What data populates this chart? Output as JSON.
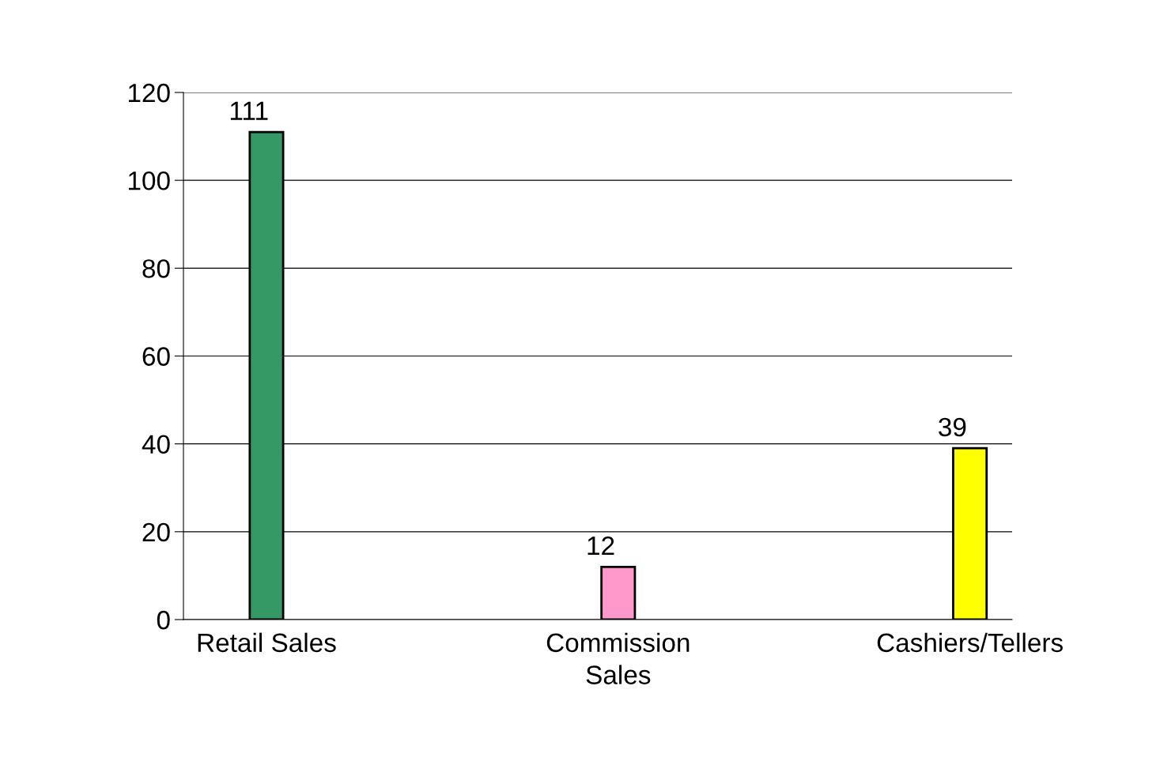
{
  "chart_data": {
    "type": "bar",
    "categories": [
      "Retail Sales",
      "Commission\nSales",
      "Cashiers/Tellers"
    ],
    "values": [
      111,
      12,
      39
    ],
    "colors": [
      "#359966",
      "#ff99cc",
      "#ffff00"
    ],
    "ylim": [
      0,
      120
    ],
    "yticks": [
      0,
      20,
      40,
      60,
      80,
      100,
      120
    ],
    "grid": "y",
    "data_labels": true
  }
}
